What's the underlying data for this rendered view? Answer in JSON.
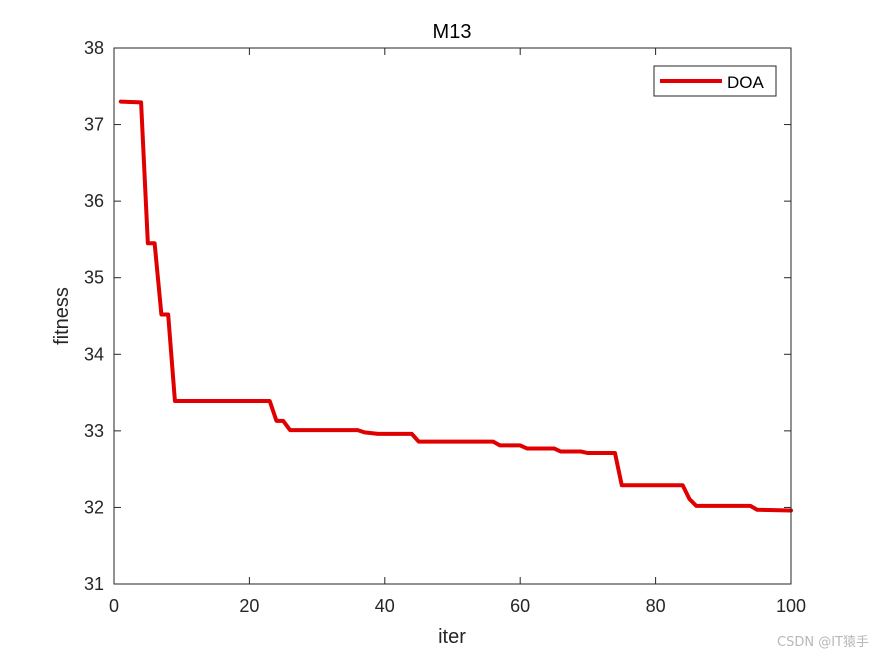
{
  "chart_data": {
    "type": "line",
    "title": "M13",
    "xlabel": "iter",
    "ylabel": "fitness",
    "xlim": [
      0,
      100
    ],
    "ylim": [
      31,
      38
    ],
    "xticks": [
      0,
      20,
      40,
      60,
      80,
      100
    ],
    "yticks": [
      31,
      32,
      33,
      34,
      35,
      36,
      37,
      38
    ],
    "grid": false,
    "legend_position": "top-right",
    "series": [
      {
        "name": "DOA",
        "color": "#e00000",
        "x": [
          1,
          4,
          5,
          6,
          7,
          8,
          9,
          23,
          24,
          25,
          26,
          36,
          37,
          38,
          39,
          44,
          45,
          56,
          57,
          60,
          61,
          65,
          66,
          69,
          70,
          74,
          75,
          84,
          85,
          86,
          94,
          95,
          100
        ],
        "y": [
          37.3,
          37.29,
          35.45,
          35.45,
          34.52,
          34.52,
          33.39,
          33.39,
          33.13,
          33.13,
          33.01,
          33.01,
          32.98,
          32.97,
          32.96,
          32.96,
          32.86,
          32.86,
          32.81,
          32.81,
          32.77,
          32.77,
          32.73,
          32.73,
          32.71,
          32.71,
          32.29,
          32.29,
          32.11,
          32.02,
          32.02,
          31.97,
          31.96
        ]
      }
    ]
  },
  "watermark": "CSDN @IT猿手"
}
